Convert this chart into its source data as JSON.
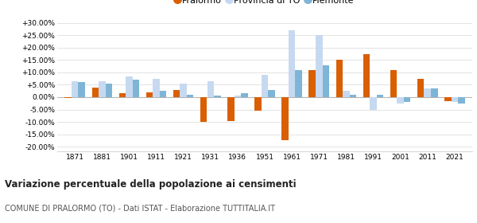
{
  "years": [
    1871,
    1881,
    1901,
    1911,
    1921,
    1931,
    1936,
    1951,
    1961,
    1971,
    1981,
    1991,
    2001,
    2011,
    2021
  ],
  "pralormo": [
    -0.3,
    4.0,
    1.5,
    2.0,
    3.0,
    -10.0,
    -9.5,
    -5.5,
    -17.5,
    11.0,
    15.0,
    17.5,
    11.0,
    7.5,
    -1.5
  ],
  "provincia_to": [
    6.5,
    6.5,
    8.5,
    7.5,
    5.5,
    6.5,
    0.5,
    9.0,
    27.0,
    25.0,
    2.5,
    -5.0,
    -2.5,
    3.5,
    -2.0
  ],
  "piemonte": [
    6.0,
    5.5,
    7.0,
    2.5,
    1.0,
    0.5,
    1.5,
    3.0,
    11.0,
    13.0,
    1.0,
    1.0,
    -2.0,
    3.5,
    -2.5
  ],
  "color_pralormo": "#d95f02",
  "color_provincia": "#c6d9f0",
  "color_piemonte": "#7eb5d6",
  "title": "Variazione percentuale della popolazione ai censimenti",
  "subtitle": "COMUNE DI PRALORMO (TO) - Dati ISTAT - Elaborazione TUTTITALIA.IT",
  "ylim": [
    -22,
    32
  ],
  "yticks": [
    -20,
    -15,
    -10,
    -5,
    0,
    5,
    10,
    15,
    20,
    25,
    30
  ],
  "bar_width": 0.25,
  "bg_color": "#ffffff",
  "grid_color": "#d8d8d8"
}
